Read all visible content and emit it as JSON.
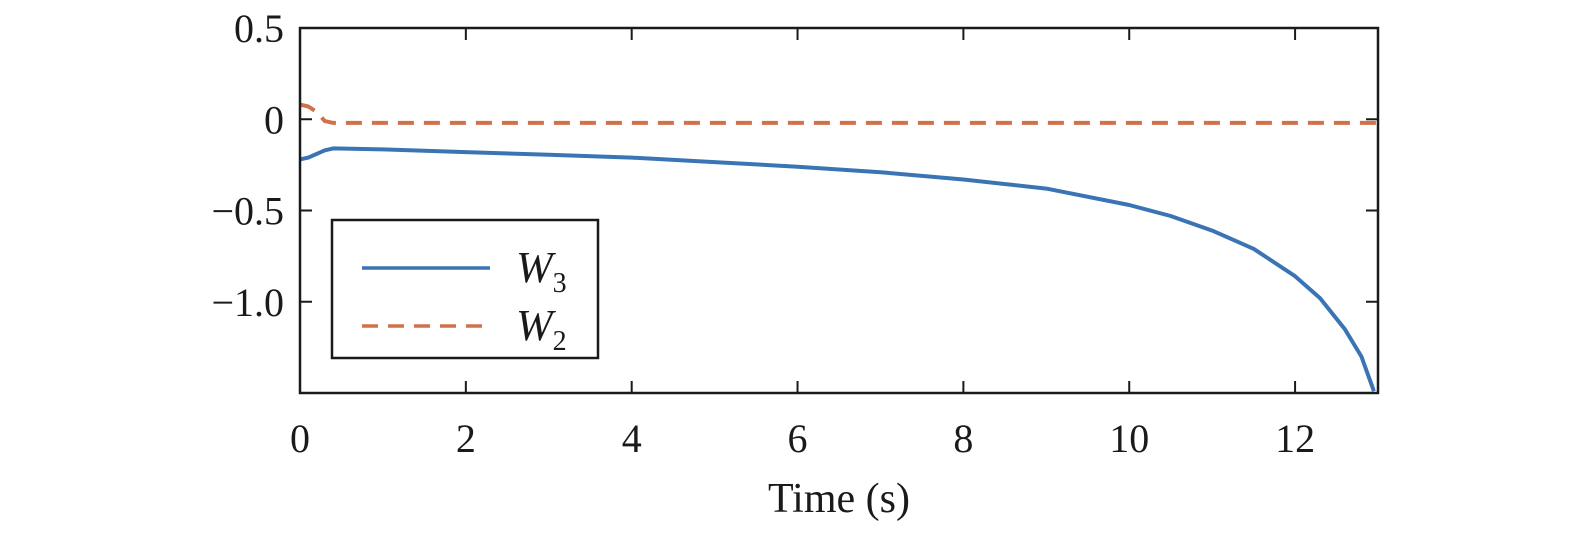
{
  "chart_data": {
    "type": "line",
    "title": "",
    "xlabel": "Time (s)",
    "ylabel": "",
    "xlim": [
      0,
      13
    ],
    "ylim": [
      -1.5,
      0.5
    ],
    "xticks": [
      0,
      2,
      4,
      6,
      8,
      10,
      12
    ],
    "xtick_labels": [
      "0",
      "2",
      "4",
      "6",
      "8",
      "10",
      "12"
    ],
    "yticks": [
      0.5,
      0,
      -0.5,
      -1.0
    ],
    "ytick_labels": [
      "0.5",
      "0",
      "−0.5",
      "−1.0"
    ],
    "grid": false,
    "legend_position": "lower-left",
    "series": [
      {
        "name": "W",
        "subscript": "3",
        "color": "#3b74b5",
        "style": "solid",
        "x": [
          0,
          0.1,
          0.2,
          0.3,
          0.4,
          1,
          2,
          3,
          4,
          5,
          6,
          7,
          8,
          9,
          10,
          10.5,
          11,
          11.5,
          12,
          12.3,
          12.6,
          12.8,
          12.95
        ],
        "y": [
          -0.22,
          -0.21,
          -0.19,
          -0.17,
          -0.16,
          -0.165,
          -0.18,
          -0.195,
          -0.21,
          -0.235,
          -0.26,
          -0.29,
          -0.33,
          -0.38,
          -0.47,
          -0.53,
          -0.61,
          -0.71,
          -0.86,
          -0.98,
          -1.15,
          -1.3,
          -1.49
        ]
      },
      {
        "name": "W",
        "subscript": "2",
        "color": "#d0714a",
        "style": "dashed",
        "x": [
          0,
          0.1,
          0.2,
          0.3,
          0.4,
          2,
          4,
          6,
          8,
          10,
          12,
          13
        ],
        "y": [
          0.08,
          0.07,
          0.04,
          -0.01,
          -0.02,
          -0.02,
          -0.02,
          -0.02,
          -0.02,
          -0.02,
          -0.02,
          -0.02
        ]
      }
    ]
  }
}
